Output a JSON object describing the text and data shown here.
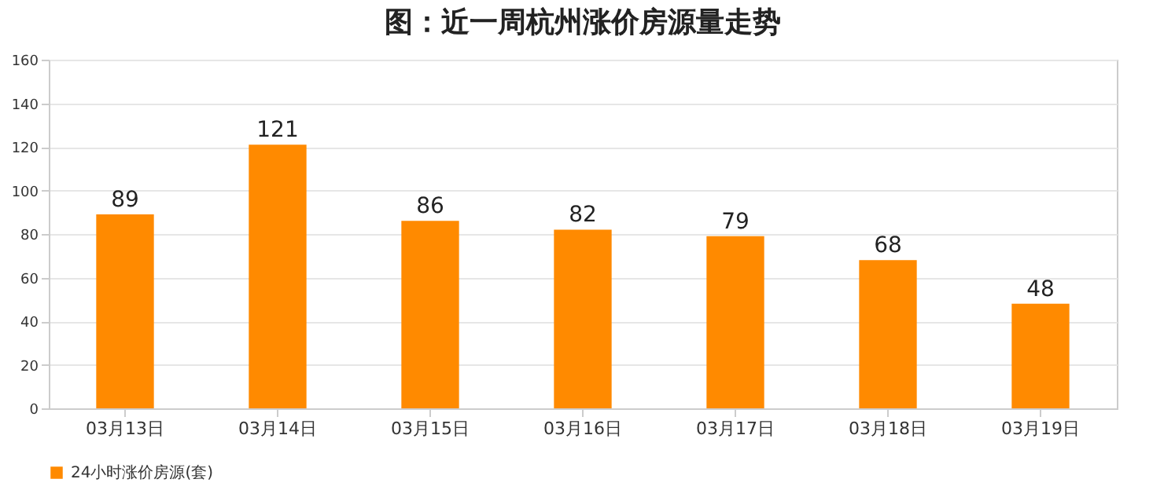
{
  "chart_data": {
    "type": "bar",
    "title": "图：近一周杭州涨价房源量走势",
    "categories": [
      "03月13日",
      "03月14日",
      "03月15日",
      "03月16日",
      "03月17日",
      "03月18日",
      "03月19日"
    ],
    "series": [
      {
        "name": "24小时涨价房源(套)",
        "color": "#ff8a00",
        "values": [
          89,
          121,
          86,
          82,
          79,
          68,
          48
        ]
      }
    ],
    "ylim": [
      0,
      160
    ],
    "yticks": [
      0,
      20,
      40,
      60,
      80,
      100,
      120,
      140,
      160
    ],
    "grid": "y",
    "legend": "bottom",
    "data_labels": true
  }
}
